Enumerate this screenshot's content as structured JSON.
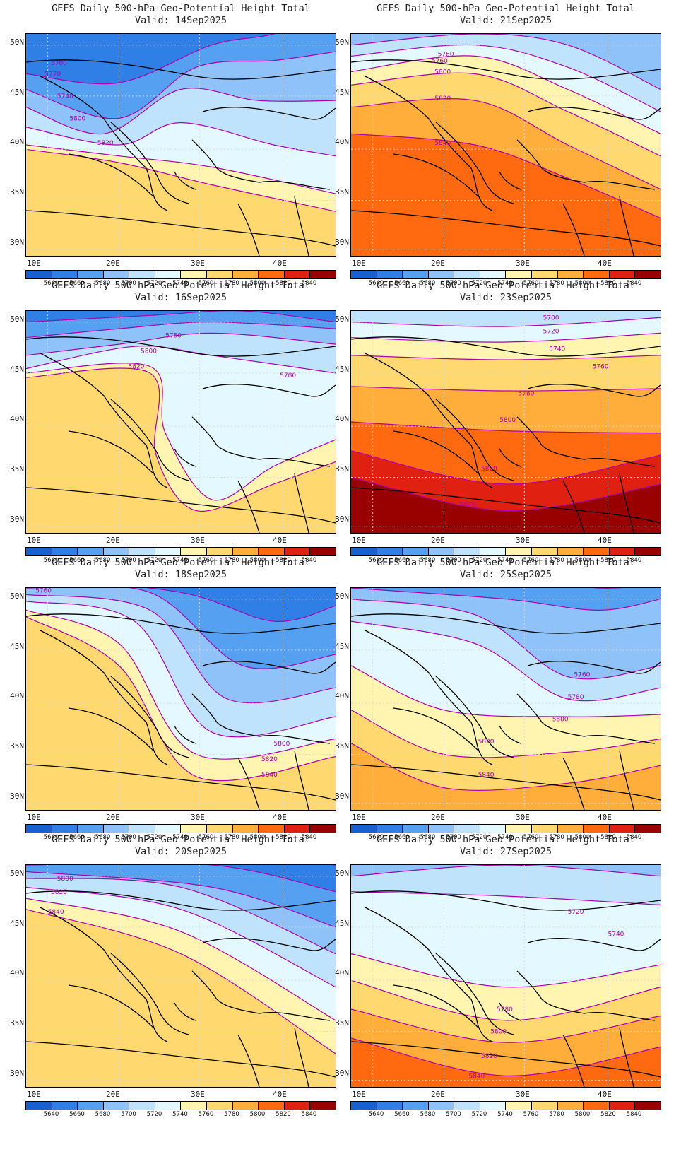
{
  "figure": {
    "title_line1": "GEFS Daily 500-hPa Geo-Potential Height Total",
    "lat_labels": [
      "50N",
      "45N",
      "40N",
      "35N",
      "30N"
    ],
    "lon_labels": [
      "10E",
      "20E",
      "30E",
      "40E"
    ],
    "colorbar": {
      "ticks": [
        "5640",
        "5660",
        "5680",
        "5700",
        "5720",
        "5740",
        "5760",
        "5780",
        "5800",
        "5820",
        "5840"
      ],
      "colors": [
        "#1660d0",
        "#2f7fe6",
        "#56a0f2",
        "#8ec2f8",
        "#bfe3fc",
        "#e4f8ff",
        "#fff5b0",
        "#ffd970",
        "#ffae3c",
        "#ff6a10",
        "#e02010",
        "#990000"
      ]
    },
    "contour_color": "#b000b0"
  },
  "panels": [
    {
      "valid": "Valid: 14Sep2025",
      "contour_labels": [
        "5700",
        "5720",
        "5740",
        "5800",
        "5820"
      ]
    },
    {
      "valid": "Valid: 21Sep2025",
      "contour_labels": [
        "5760",
        "5780",
        "5800",
        "5820",
        "5840"
      ]
    },
    {
      "valid": "Valid: 16Sep2025",
      "contour_labels": [
        "5780",
        "5800",
        "5820",
        "5780"
      ]
    },
    {
      "valid": "Valid: 23Sep2025",
      "contour_labels": [
        "5700",
        "5720",
        "5740",
        "5760",
        "5780",
        "5800",
        "5820",
        "5840"
      ]
    },
    {
      "valid": "Valid: 18Sep2025",
      "contour_labels": [
        "5760",
        "5800",
        "5820",
        "5840"
      ]
    },
    {
      "valid": "Valid: 25Sep2025",
      "contour_labels": [
        "5760",
        "5780",
        "5800",
        "5820",
        "5840"
      ]
    },
    {
      "valid": "Valid: 20Sep2025",
      "contour_labels": [
        "5800",
        "5820",
        "5840"
      ]
    },
    {
      "valid": "Valid: 27Sep2025",
      "contour_labels": [
        "5720",
        "5740",
        "5780",
        "5800",
        "5820",
        "5840"
      ]
    }
  ]
}
